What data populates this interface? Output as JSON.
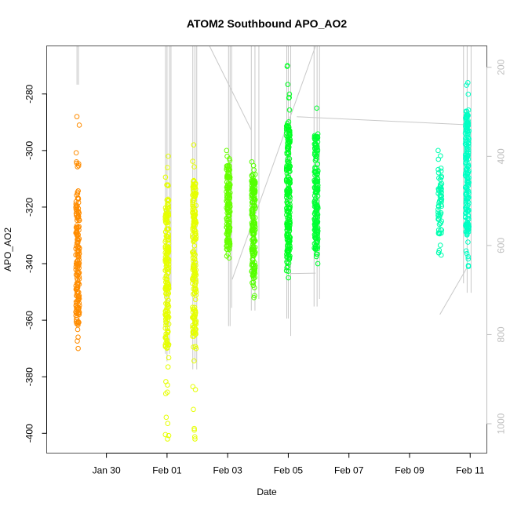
{
  "chart_data": {
    "type": "scatter",
    "title": "ATOM2 Southbound APO_AO2",
    "xlabel": "Date",
    "ylabel": "APO_AO2",
    "x_units": "day of year offset (Jan 30 = 30, Feb 01 = 32)",
    "xlim": [
      28.03,
      42.55
    ],
    "ylim": [
      -407,
      -263
    ],
    "x_ticks": [
      {
        "value": 30,
        "label": "Jan 30"
      },
      {
        "value": 32,
        "label": "Feb 01"
      },
      {
        "value": 34,
        "label": "Feb 03"
      },
      {
        "value": 36,
        "label": "Feb 05"
      },
      {
        "value": 38,
        "label": "Feb 07"
      },
      {
        "value": 40,
        "label": "Feb 09"
      },
      {
        "value": 42,
        "label": "Feb 11"
      }
    ],
    "y_ticks": [
      -280,
      -300,
      -320,
      -340,
      -360,
      -380,
      -400
    ],
    "right_axis": {
      "ticks": [
        200,
        400,
        600,
        800,
        1000
      ],
      "range": [
        152,
        1066
      ],
      "color": "#bebebe"
    },
    "clusters": [
      {
        "date": 29.05,
        "min": -370,
        "max": -288,
        "dense": [
          -362,
          -315
        ],
        "color": "#FF8C00",
        "n": 180
      },
      {
        "date": 32.0,
        "min": -402,
        "max": -302,
        "dense": [
          -370,
          -317
        ],
        "color": "#E6FF00",
        "n": 200
      },
      {
        "date": 32.9,
        "min": -402,
        "max": -298,
        "dense": [
          -365,
          -310
        ],
        "color": "#E6FF00",
        "n": 200
      },
      {
        "date": 34.02,
        "min": -338,
        "max": -300,
        "dense": [
          -335,
          -305
        ],
        "color": "#66FF00",
        "n": 160
      },
      {
        "date": 34.85,
        "min": -352,
        "max": -304,
        "dense": [
          -345,
          -310
        ],
        "color": "#55FF00",
        "n": 180
      },
      {
        "date": 36.0,
        "min": -345,
        "max": -270,
        "dense": [
          -340,
          -290
        ],
        "color": "#00FF22",
        "n": 220
      },
      {
        "date": 36.92,
        "min": -340,
        "max": -285,
        "dense": [
          -335,
          -295
        ],
        "color": "#00FF33",
        "n": 180
      },
      {
        "date": 41.0,
        "min": -337,
        "max": -300,
        "dense": [
          -330,
          -305
        ],
        "color": "#00FFB0",
        "n": 70
      },
      {
        "date": 41.9,
        "min": -341,
        "max": -276,
        "dense": [
          -330,
          -285
        ],
        "color": "#00FFC4",
        "n": 200
      }
    ],
    "secondary_series": {
      "color": "#c8c8c8",
      "segments": [
        [
          [
            29.03,
            152
          ],
          [
            29.03,
            239
          ]
        ],
        [
          [
            29.08,
            152
          ],
          [
            29.08,
            239
          ]
        ],
        [
          [
            31.95,
            152
          ],
          [
            31.95,
            843
          ]
        ],
        [
          [
            32.0,
            152
          ],
          [
            32.0,
            860
          ]
        ],
        [
          [
            32.08,
            152
          ],
          [
            32.08,
            843
          ]
        ],
        [
          [
            32.13,
            152
          ],
          [
            32.13,
            700
          ]
        ],
        [
          [
            32.85,
            152
          ],
          [
            32.85,
            878
          ]
        ],
        [
          [
            32.92,
            152
          ],
          [
            32.92,
            860
          ]
        ],
        [
          [
            32.98,
            152
          ],
          [
            32.98,
            878
          ]
        ],
        [
          [
            33.4,
            152
          ],
          [
            34.78,
            341
          ]
        ],
        [
          [
            34.03,
            152
          ],
          [
            34.03,
            781
          ]
        ],
        [
          [
            34.08,
            152
          ],
          [
            34.08,
            781
          ]
        ],
        [
          [
            34.13,
            152
          ],
          [
            34.13,
            740
          ]
        ],
        [
          [
            34.15,
            676
          ],
          [
            36.9,
            152
          ]
        ],
        [
          [
            34.78,
            152
          ],
          [
            34.78,
            746
          ]
        ],
        [
          [
            34.9,
            152
          ],
          [
            34.9,
            746
          ]
        ],
        [
          [
            35.03,
            152
          ],
          [
            35.03,
            720
          ]
        ],
        [
          [
            35.95,
            152
          ],
          [
            35.95,
            764
          ]
        ],
        [
          [
            36.0,
            152
          ],
          [
            36.0,
            764
          ]
        ],
        [
          [
            36.08,
            152
          ],
          [
            36.08,
            803
          ]
        ],
        [
          [
            36.08,
            663
          ],
          [
            36.9,
            662
          ]
        ],
        [
          [
            36.85,
            152
          ],
          [
            36.85,
            737
          ]
        ],
        [
          [
            36.95,
            152
          ],
          [
            36.95,
            737
          ]
        ],
        [
          [
            37.03,
            152
          ],
          [
            37.03,
            720
          ]
        ],
        [
          [
            36.28,
            311
          ],
          [
            41.9,
            329
          ]
        ],
        [
          [
            41.0,
            755
          ],
          [
            41.9,
            649
          ]
        ],
        [
          [
            41.78,
            152
          ],
          [
            41.78,
            685
          ]
        ],
        [
          [
            41.9,
            152
          ],
          [
            41.9,
            706
          ]
        ],
        [
          [
            42.03,
            152
          ],
          [
            42.03,
            706
          ]
        ]
      ]
    }
  }
}
